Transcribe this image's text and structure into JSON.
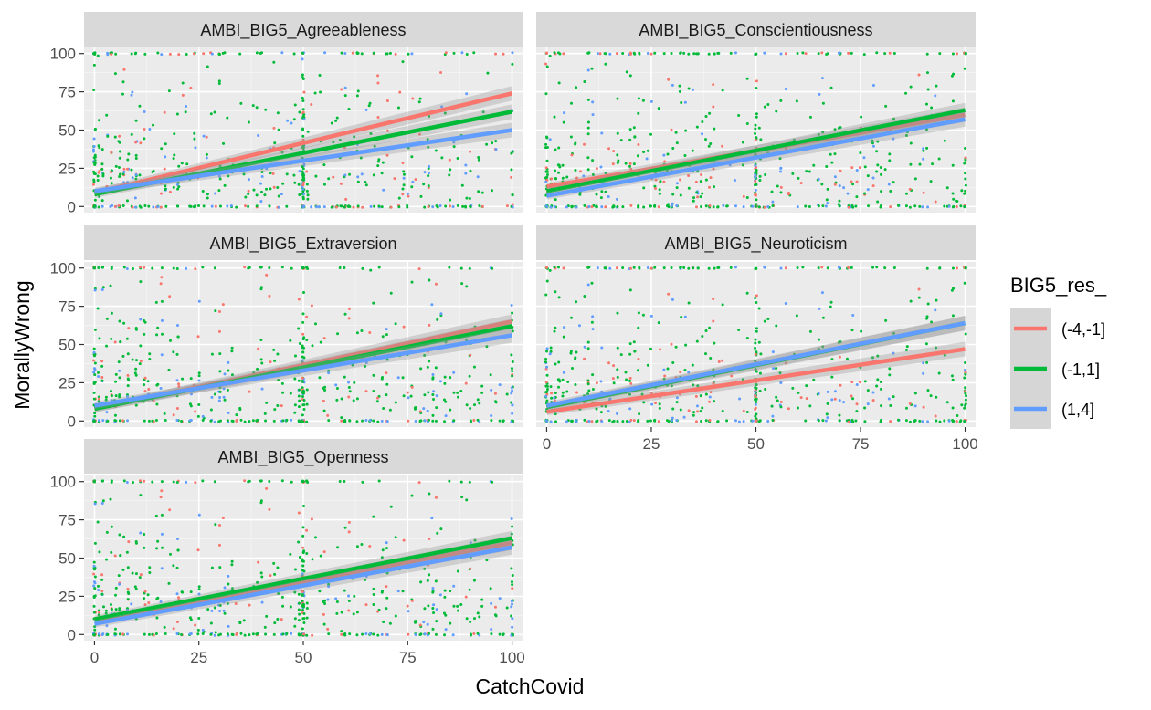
{
  "chart_data": {
    "type": "scatter",
    "title": "",
    "xlabel": "CatchCovid",
    "ylabel": "MorallyWrong",
    "xlim": [
      -2.5,
      102.5
    ],
    "ylim": [
      -4,
      104
    ],
    "x_ticks": [
      "0",
      "25",
      "50",
      "75",
      "100"
    ],
    "y_ticks": [
      "0",
      "25",
      "50",
      "75",
      "100"
    ],
    "x_tick_values": [
      0,
      25,
      50,
      75,
      100
    ],
    "y_tick_values": [
      0,
      25,
      50,
      75,
      100
    ],
    "grid": true,
    "legend": {
      "title": "BIG5_res_",
      "position": "right",
      "items": [
        {
          "label": "(-4,-1]",
          "color": "#F8766D"
        },
        {
          "label": "(-1,1]",
          "color": "#00BA38"
        },
        {
          "label": "(1,4]",
          "color": "#619CFF"
        }
      ]
    },
    "layout": "facet_wrap 2 columns",
    "panels": [
      {
        "strip": "AMBI_BIG5_Agreeableness",
        "trend_lines": [
          {
            "series": "(-4,-1]",
            "x": [
              0,
              100
            ],
            "y": [
              9,
              74
            ]
          },
          {
            "series": "(-1,1]",
            "x": [
              0,
              100
            ],
            "y": [
              8,
              62
            ]
          },
          {
            "series": "(1,4]",
            "x": [
              0,
              100
            ],
            "y": [
              10,
              50
            ]
          }
        ]
      },
      {
        "strip": "AMBI_BIG5_Conscientiousness",
        "trend_lines": [
          {
            "series": "(-4,-1]",
            "x": [
              0,
              100
            ],
            "y": [
              13,
              60
            ]
          },
          {
            "series": "(-1,1]",
            "x": [
              0,
              100
            ],
            "y": [
              10,
              63
            ]
          },
          {
            "series": "(1,4]",
            "x": [
              0,
              100
            ],
            "y": [
              7,
              57
            ]
          }
        ]
      },
      {
        "strip": "AMBI_BIG5_Extraversion",
        "trend_lines": [
          {
            "series": "(-4,-1]",
            "x": [
              0,
              100
            ],
            "y": [
              8,
              65
            ]
          },
          {
            "series": "(-1,1]",
            "x": [
              0,
              100
            ],
            "y": [
              8,
              62
            ]
          },
          {
            "series": "(1,4]",
            "x": [
              0,
              100
            ],
            "y": [
              10,
              56
            ]
          }
        ]
      },
      {
        "strip": "AMBI_BIG5_Neuroticism",
        "trend_lines": [
          {
            "series": "(-4,-1]",
            "x": [
              0,
              100
            ],
            "y": [
              6,
              47
            ]
          },
          {
            "series": "(-1,1]",
            "x": [
              0,
              100
            ],
            "y": [
              9,
              64
            ]
          },
          {
            "series": "(1,4]",
            "x": [
              0,
              100
            ],
            "y": [
              10,
              64
            ]
          }
        ]
      },
      {
        "strip": "AMBI_BIG5_Openness",
        "trend_lines": [
          {
            "series": "(-4,-1]",
            "x": [
              0,
              100
            ],
            "y": [
              9,
              60
            ]
          },
          {
            "series": "(-1,1]",
            "x": [
              0,
              100
            ],
            "y": [
              10,
              63
            ]
          },
          {
            "series": "(1,4]",
            "x": [
              0,
              100
            ],
            "y": [
              7,
              57
            ]
          }
        ]
      }
    ]
  }
}
